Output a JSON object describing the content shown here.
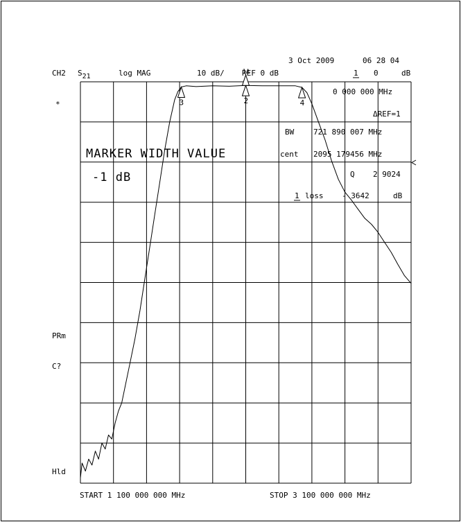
{
  "header": {
    "date": "3 Oct 2009",
    "time": "06 28 04",
    "channel": "CH2",
    "param_base": "S",
    "param_sub": "21",
    "format": "log MAG",
    "scale": "10 dB/",
    "ref": "REF 0 dB",
    "marker_num": "1",
    "marker_val": "0",
    "marker_unit": "dB"
  },
  "readout": {
    "marker_freq": "0 000 000 MHz",
    "delta_ref": "ΔREF=1",
    "bw_label": "BW",
    "bw_value": "721 890 007 MHz",
    "cent_label": "cent",
    "cent_value": "2095 179456 MHz",
    "q_label": "Q",
    "q_value": "2 9024",
    "loss_num": "1",
    "loss_label": "loss",
    "loss_value": "- 3642",
    "loss_unit": "dB"
  },
  "overlay": {
    "title": "MARKER WIDTH VALUE",
    "value": "-1 dB"
  },
  "side": {
    "star": "*",
    "prm": "PRm",
    "cq": "C?",
    "hld": "Hld"
  },
  "footer": {
    "start": "START 1 100 000 000 MHz",
    "stop": "STOP 3 100 000 000 MHz"
  },
  "markers": [
    {
      "label": "3",
      "freq_mhz": 1710
    },
    {
      "label": "2",
      "freq_mhz": 2100
    },
    {
      "label": "1Δ",
      "freq_mhz": 2100
    },
    {
      "label": "4",
      "freq_mhz": 2440
    }
  ],
  "chart_data": {
    "type": "line",
    "x_unit": "MHz",
    "y_unit": "dB",
    "xlim": [
      1100,
      3100
    ],
    "ylim": [
      -100,
      0
    ],
    "ref_level": 0,
    "scale_per_div": 10,
    "grid": true,
    "x_divisions": 10,
    "y_divisions": 10,
    "series": [
      {
        "x": [
          1100,
          1110,
          1130,
          1150,
          1170,
          1190,
          1210,
          1230,
          1250,
          1270,
          1290,
          1310,
          1330,
          1350,
          1370,
          1400,
          1430,
          1460,
          1490,
          1520,
          1550,
          1580,
          1610,
          1640,
          1670,
          1690,
          1710,
          1740,
          1800,
          1900,
          2000,
          2100,
          2200,
          2300,
          2400,
          2440,
          2470,
          2500,
          2540,
          2580,
          2620,
          2660,
          2700,
          2740,
          2780,
          2820,
          2860,
          2900,
          2940,
          2980,
          3020,
          3060,
          3100
        ],
        "y": [
          -98.7,
          -95,
          -97,
          -94,
          -95.5,
          -92,
          -94,
          -90,
          -91.5,
          -88,
          -89,
          -85,
          -82,
          -80,
          -76,
          -70,
          -64,
          -57,
          -49,
          -41,
          -33,
          -25,
          -17,
          -10,
          -4.5,
          -2.4,
          -1.3,
          -1,
          -1.2,
          -1,
          -1.1,
          -0.9,
          -1,
          -1,
          -1,
          -1.4,
          -2.7,
          -5.5,
          -10,
          -14.5,
          -19.8,
          -24.3,
          -27.5,
          -29.5,
          -31.8,
          -34,
          -35.5,
          -37.5,
          -40,
          -42.5,
          -45.5,
          -48.3,
          -50.2
        ]
      }
    ]
  }
}
